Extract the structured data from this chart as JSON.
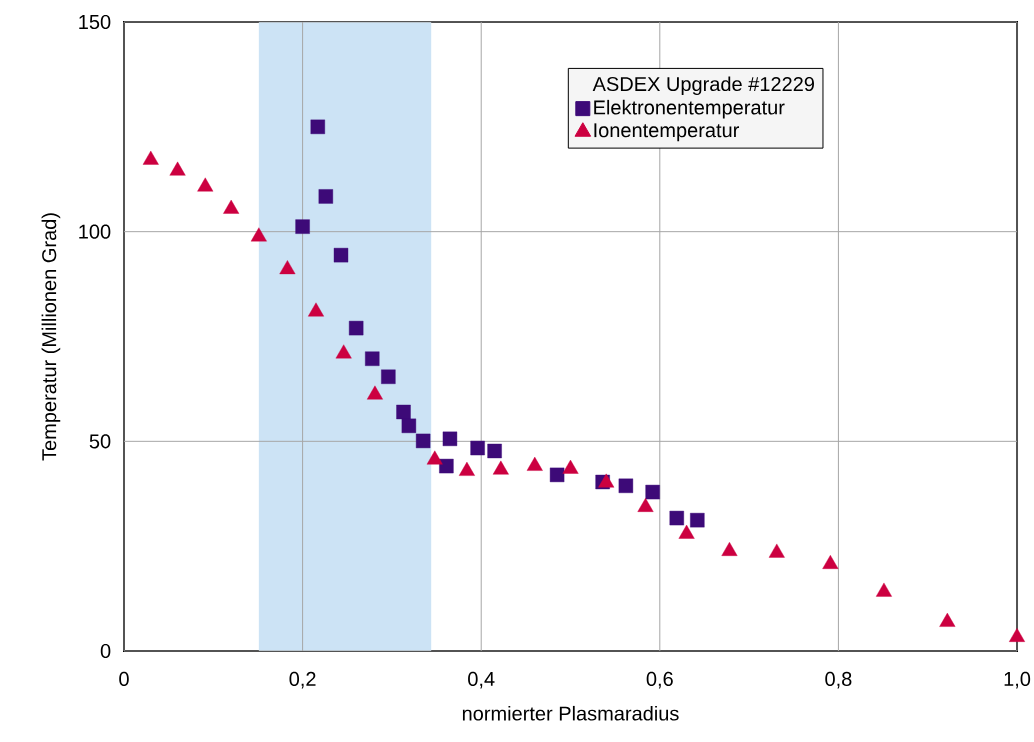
{
  "chart_data": {
    "type": "scatter",
    "xlabel": "normierter Plasmaradius",
    "ylabel": "Temperatur (Millionen Grad)",
    "legend_title": "ASDEX Upgrade #12229",
    "xlim": [
      0,
      1.0
    ],
    "ylim": [
      0,
      150
    ],
    "xticks": [
      0,
      {
        "value": 0.2,
        "label": "0,2"
      },
      {
        "value": 0.4,
        "label": "0,4"
      },
      {
        "value": 0.6,
        "label": "0,6"
      },
      {
        "value": 0.8,
        "label": "0,8"
      },
      {
        "value": 1.0,
        "label": "1,0"
      }
    ],
    "yticks": [
      0,
      50,
      100,
      150
    ],
    "grid": true,
    "legend": "top right",
    "bands": [
      {
        "axis": "x",
        "from": 0.151,
        "to": 0.344,
        "color": "#cce3f5"
      }
    ],
    "series": [
      {
        "name": "Elektronentemperatur",
        "color": "#3d0a78",
        "marker": "square",
        "x": [
          0.217,
          0.226,
          0.2,
          0.243,
          0.26,
          0.278,
          0.296,
          0.313,
          0.319,
          0.335,
          0.361,
          0.365,
          0.396,
          0.415,
          0.485,
          0.536,
          0.562,
          0.592,
          0.619,
          0.642
        ],
        "values": [
          125.0,
          108.4,
          101.2,
          94.4,
          77.0,
          69.7,
          65.4,
          57.0,
          53.7,
          50.1,
          44.1,
          50.6,
          48.4,
          47.7,
          42.0,
          40.3,
          39.4,
          37.9,
          31.7,
          31.2
        ]
      },
      {
        "name": "Ionentemperatur",
        "color": "#cc0040",
        "marker": "triangle",
        "x": [
          0.03,
          0.06,
          0.091,
          0.12,
          0.151,
          0.183,
          0.215,
          0.246,
          0.281,
          0.348,
          0.384,
          0.422,
          0.46,
          0.5,
          0.54,
          0.584,
          0.63,
          0.678,
          0.731,
          0.791,
          0.851,
          0.922,
          1.0
        ],
        "values": [
          117.1,
          114.5,
          110.7,
          105.4,
          98.8,
          91.0,
          80.9,
          70.9,
          61.1,
          45.6,
          42.9,
          43.2,
          44.1,
          43.4,
          40.1,
          34.3,
          27.9,
          23.8,
          23.4,
          20.7,
          14.1,
          6.9,
          3.3
        ]
      }
    ]
  }
}
